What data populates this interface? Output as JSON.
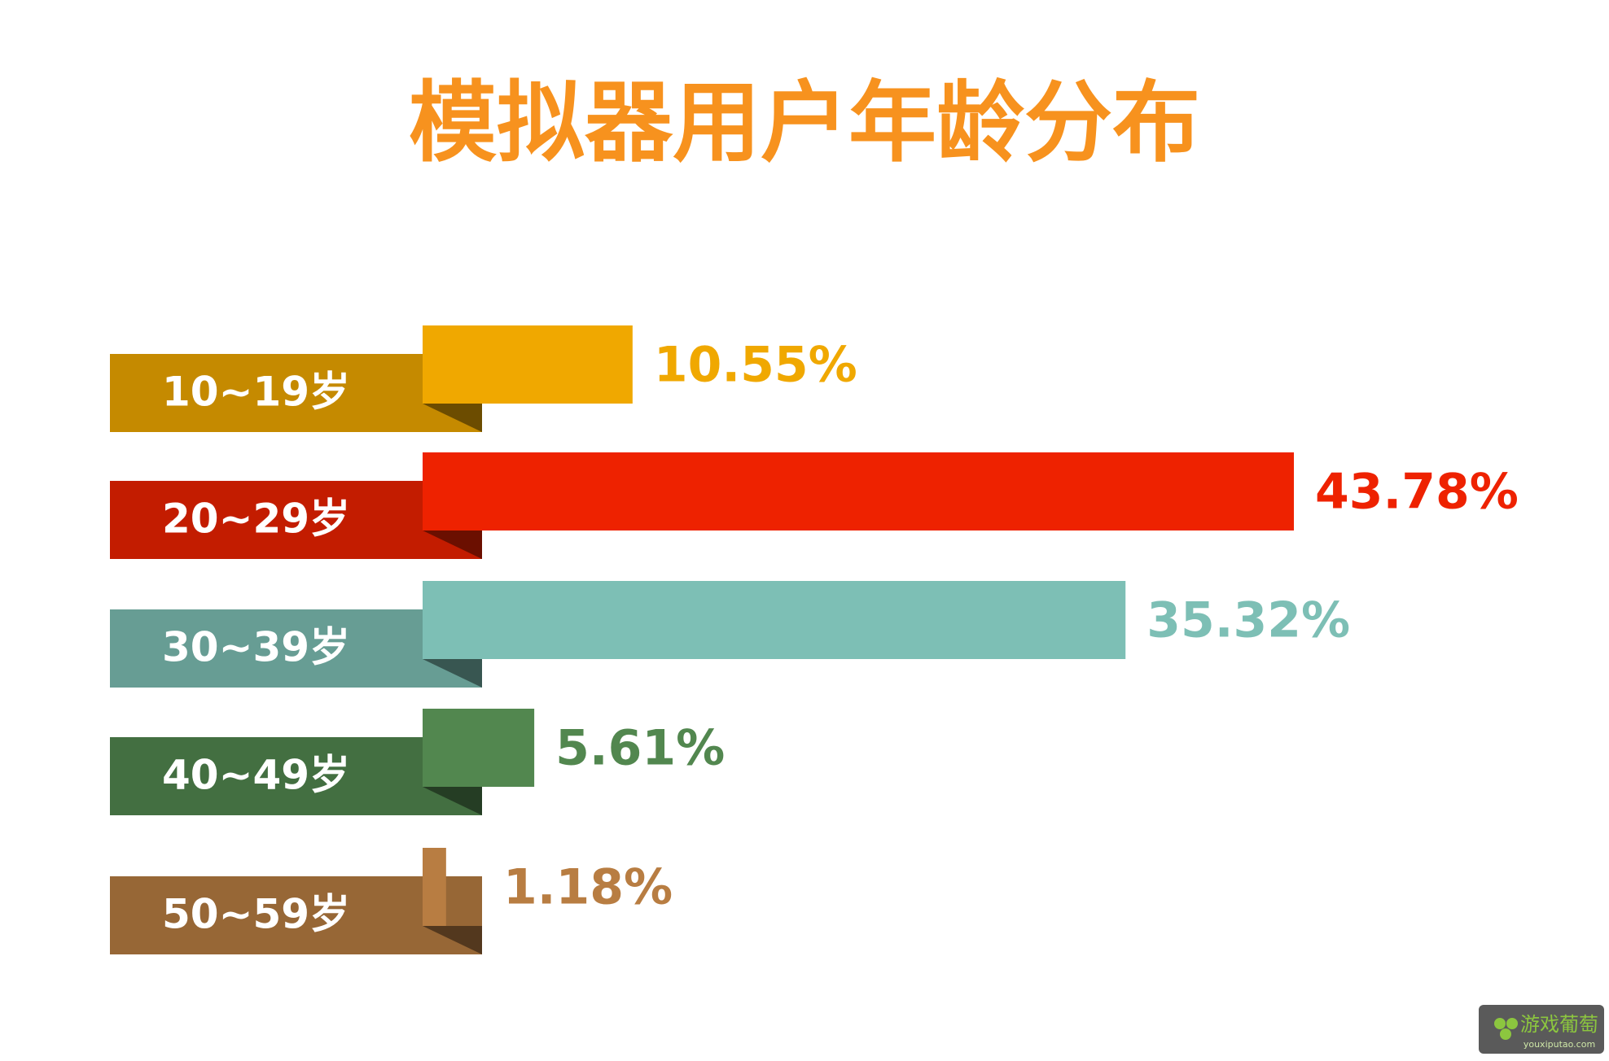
{
  "chart_data": {
    "type": "bar",
    "title": "模拟器用户年龄分布",
    "categories": [
      "10~19岁",
      "20~29岁",
      "30~39岁",
      "40~49岁",
      "50~59岁"
    ],
    "values": [
      10.55,
      43.78,
      35.32,
      5.61,
      1.18
    ],
    "value_labels": [
      "10.55%",
      "43.78%",
      "35.32%",
      "5.61%",
      "1.18%"
    ],
    "colors": [
      "#f0a800",
      "#ee2200",
      "#7dbfb5",
      "#52874f",
      "#b87d42"
    ]
  },
  "watermark": {
    "name": "游戏葡萄",
    "url": "youxiputao.com"
  }
}
